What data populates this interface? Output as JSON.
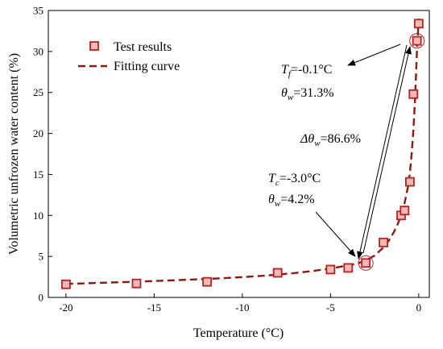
{
  "chart_data": {
    "type": "scatter",
    "xlabel": "Temperature (°C)",
    "ylabel": "Volumetric unfrozen water content (%)",
    "xlim": [
      -21,
      0.6
    ],
    "ylim": [
      0,
      35
    ],
    "xticks": [
      -20,
      -15,
      -10,
      -5,
      0
    ],
    "yticks": [
      0,
      5,
      10,
      15,
      20,
      25,
      30,
      35
    ],
    "grid": false,
    "legend": {
      "position": "top-left",
      "entries": [
        "Test results",
        "Fitting curve"
      ]
    },
    "series": [
      {
        "name": "Test results",
        "kind": "markers",
        "marker": "square",
        "color": "#b22222",
        "x": [
          -20,
          -16,
          -12,
          -8,
          -5,
          -4,
          -3,
          -2,
          -1,
          -0.8,
          -0.5,
          -0.3,
          -0.1,
          0
        ],
        "y": [
          1.6,
          1.7,
          1.9,
          3.0,
          3.4,
          3.6,
          4.2,
          6.7,
          10.0,
          10.6,
          14.1,
          24.8,
          31.3,
          33.4
        ]
      },
      {
        "name": "Fitting curve",
        "kind": "line",
        "style": "dashed",
        "color": "#8b1a10",
        "x": [
          -20,
          -18,
          -16,
          -14,
          -12,
          -10,
          -9,
          -8,
          -7,
          -6,
          -5,
          -4.5,
          -4,
          -3.5,
          -3,
          -2.5,
          -2,
          -1.7,
          -1.4,
          -1.2,
          -1,
          -0.8,
          -0.6,
          -0.5,
          -0.4,
          -0.3,
          -0.2,
          -0.1,
          0
        ],
        "y": [
          1.65,
          1.78,
          1.92,
          2.08,
          2.25,
          2.48,
          2.62,
          2.78,
          2.98,
          3.22,
          3.52,
          3.72,
          3.92,
          4.12,
          4.5,
          5.1,
          6.1,
          6.9,
          8.0,
          8.9,
          10.0,
          11.5,
          13.6,
          15.2,
          17.5,
          20.5,
          24.6,
          30.2,
          34.0
        ]
      }
    ],
    "highlight_points": [
      {
        "x": -0.1,
        "y": 31.3
      },
      {
        "x": -3.0,
        "y": 4.2
      }
    ],
    "annotations": {
      "tf": {
        "var": "T",
        "sub": "f",
        "value": "=-0.1°C"
      },
      "theta1": {
        "var": "θ",
        "sub": "w",
        "value": "=31.3%"
      },
      "delta": {
        "var": "Δθ",
        "sub": "w",
        "value": "=86.6%"
      },
      "tc": {
        "var": "T",
        "sub": "c",
        "value": "=-3.0°C"
      },
      "theta2": {
        "var": "θ",
        "sub": "w",
        "value": "=4.2%"
      }
    }
  }
}
